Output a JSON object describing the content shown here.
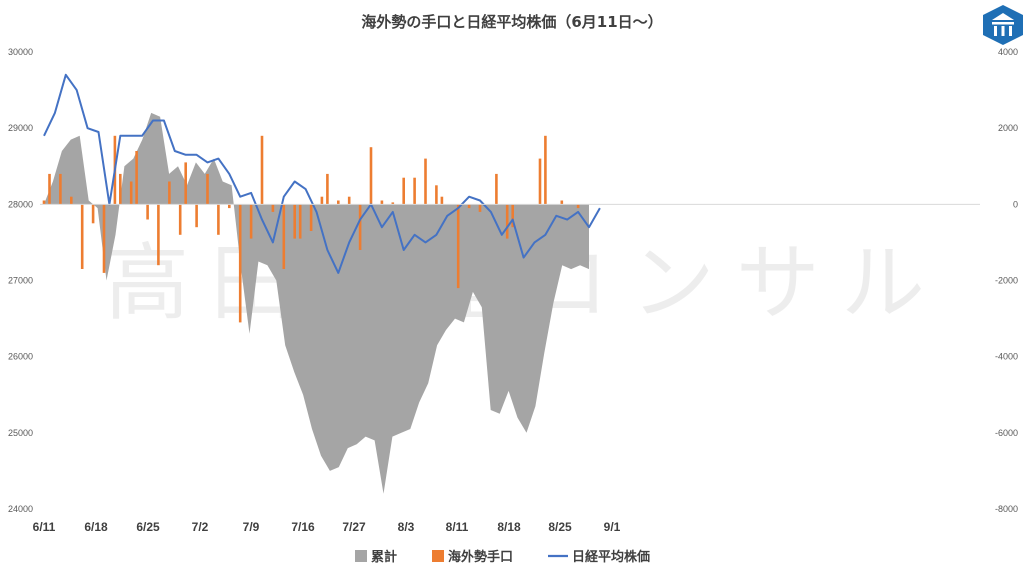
{
  "chart_data": {
    "type": "combo",
    "title": "海外勢の手口と日経平均株価（6月11日～）",
    "watermark": "高田資産コンサル",
    "x_tick_labels": [
      "6/11",
      "6/18",
      "6/25",
      "7/2",
      "7/9",
      "7/16",
      "7/27",
      "8/3",
      "8/11",
      "8/18",
      "8/25",
      "9/1"
    ],
    "y_left": {
      "min": 24000,
      "max": 30000,
      "ticks": [
        "24000",
        "25000",
        "26000",
        "27000",
        "28000",
        "29000",
        "30000"
      ]
    },
    "y_right": {
      "min": -8000,
      "max": 4000,
      "ticks": [
        "-8000",
        "-6000",
        "-4000",
        "-2000",
        "0",
        "2000",
        "4000"
      ]
    },
    "legend": [
      {
        "name": "累計",
        "color": "#a5a5a5",
        "kind": "area"
      },
      {
        "name": "海外勢手口",
        "color": "#ed7d31",
        "kind": "bar"
      },
      {
        "name": "日経平均株価",
        "color": "#4472c4",
        "kind": "line"
      }
    ],
    "series": [
      {
        "name": "累計",
        "axis": "right",
        "values": [
          0,
          600,
          1400,
          1700,
          1800,
          100,
          -100,
          -2000,
          -800,
          1000,
          1200,
          1700,
          2400,
          2300,
          800,
          1000,
          500,
          1100,
          800,
          1200,
          600,
          500,
          -1600,
          -3400,
          -1500,
          -1600,
          -2000,
          -3700,
          -4400,
          -5000,
          -5900,
          -6600,
          -7000,
          -6900,
          -6400,
          -6300,
          -6100,
          -6200,
          -7600,
          -6100,
          -6000,
          -5900,
          -5200,
          -4700,
          -3700,
          -3300,
          -3000,
          -3100,
          -2300,
          -2700,
          -5400,
          -5500,
          -4900,
          -5600,
          -6000,
          -5300,
          -3900,
          -2600,
          -1600,
          -1700,
          -1600,
          -1700
        ],
        "gaps_after_index": [
          5,
          11,
          17,
          22,
          27,
          33,
          38,
          43,
          49,
          55
        ]
      },
      {
        "name": "海外勢手口",
        "axis": "right",
        "values": [
          100,
          800,
          800,
          200,
          -1700,
          -500,
          -1800,
          1800,
          800,
          600,
          1400,
          -400,
          -1600,
          600,
          -800,
          1100,
          -600,
          800,
          -800,
          -100,
          -3100,
          -900,
          1800,
          -200,
          -1700,
          -900,
          -900,
          -700,
          200,
          800,
          100,
          200,
          -1200,
          1500,
          100,
          50,
          700,
          700,
          1200,
          500,
          200,
          -2200,
          -100,
          -200,
          800,
          -900,
          -600,
          1200,
          1800,
          100,
          -100
        ],
        "slot_indices": [
          0,
          1,
          3,
          5,
          7,
          9,
          11,
          13,
          14,
          16,
          17,
          19,
          21,
          23,
          25,
          26,
          28,
          30,
          32,
          34,
          36,
          38,
          40,
          42,
          44,
          46,
          47,
          49,
          51,
          52,
          54,
          56,
          58,
          60,
          62,
          64,
          66,
          68,
          70,
          72,
          73,
          76,
          78,
          80,
          83,
          85,
          86,
          91,
          92,
          95,
          98
        ]
      },
      {
        "name": "日経平均株価",
        "axis": "left",
        "values": [
          28900,
          29200,
          29700,
          29500,
          29000,
          28950,
          28000,
          28900,
          28900,
          28900,
          29100,
          29100,
          28700,
          28650,
          28650,
          28550,
          28600,
          28400,
          28100,
          28150,
          27800,
          27500,
          28100,
          28300,
          28200,
          27900,
          27400,
          27100,
          27500,
          27800,
          28000,
          27700,
          27900,
          27400,
          27600,
          27500,
          27600,
          27850,
          27950,
          28100,
          28050,
          27900,
          27600,
          27800,
          27300,
          27500,
          27600,
          27850,
          27800,
          27900,
          27700,
          27950
        ],
        "slot_indices": [
          0,
          2,
          4,
          6,
          8,
          10,
          12,
          14,
          16,
          18,
          20,
          22,
          24,
          26,
          28,
          30,
          32,
          34,
          36,
          38,
          40,
          42,
          44,
          46,
          48,
          50,
          52,
          54,
          56,
          58,
          60,
          62,
          64,
          66,
          68,
          70,
          72,
          74,
          76,
          78,
          80,
          82,
          84,
          86,
          88,
          90,
          92,
          94,
          96,
          98,
          100,
          102
        ]
      }
    ],
    "slots_total": 105,
    "grid": false,
    "legend_position": "bottom"
  },
  "logo": {
    "icon": "building-logo-icon",
    "color": "#1f6fb5"
  }
}
